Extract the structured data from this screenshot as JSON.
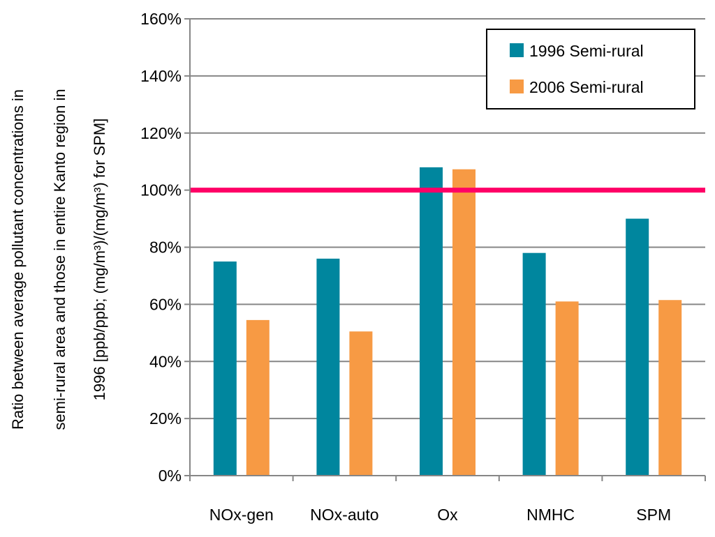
{
  "chart_data": {
    "type": "bar",
    "title": "",
    "xlabel": "",
    "ylabel_lines": [
      "Ratio between average pollutant concentrations in",
      "semi-rural area and those in entire Kanto region in",
      "1996 [ppb/ppb; (mg/m³)/(mg/m³) for SPM]"
    ],
    "categories": [
      "NOx-gen",
      "NOx-auto",
      "Ox",
      "NMHC",
      "SPM"
    ],
    "series": [
      {
        "name": "1996 Semi-rural",
        "color": "#00869e",
        "values": [
          75,
          76,
          108,
          78,
          90
        ]
      },
      {
        "name": "2006 Semi-rural",
        "color": "#f79a44",
        "values": [
          54.5,
          50.5,
          107.3,
          61,
          61.5
        ]
      }
    ],
    "ylim": [
      0,
      160
    ],
    "yticks": [
      "0%",
      "20%",
      "40%",
      "60%",
      "80%",
      "100%",
      "120%",
      "140%",
      "160%"
    ],
    "reference_line": {
      "value": 100,
      "color": "#ff0066"
    },
    "grid": true,
    "legend_position": "top-right"
  }
}
